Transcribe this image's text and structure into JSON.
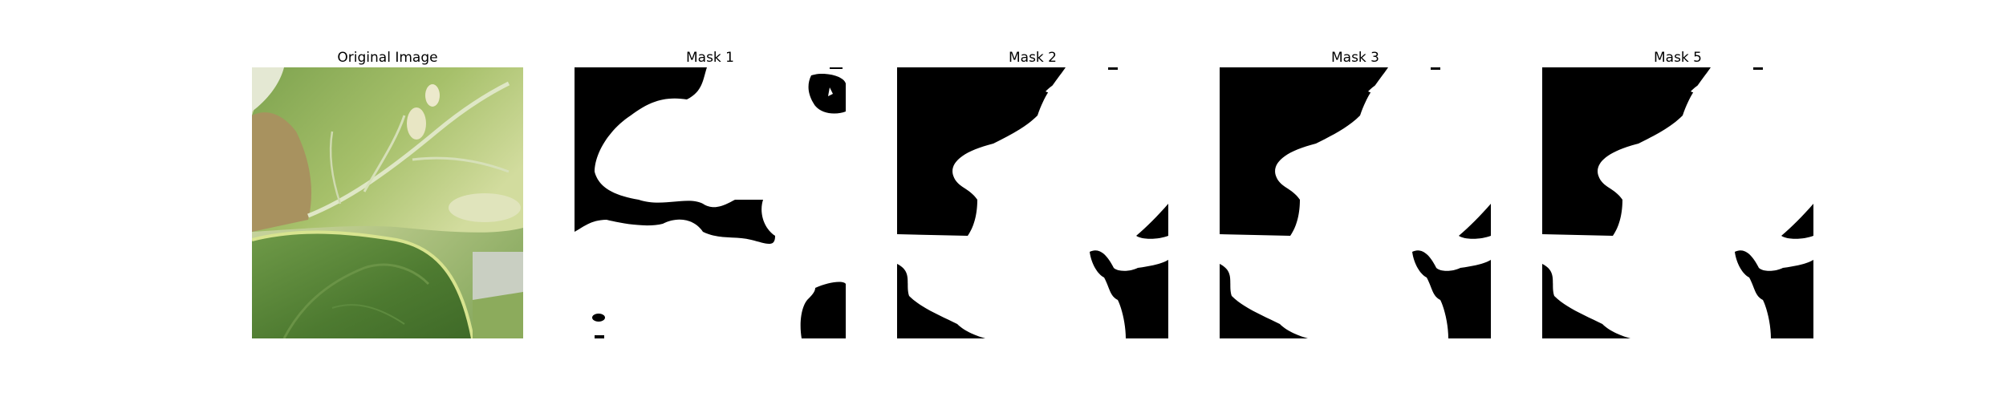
{
  "figure": {
    "panels": [
      {
        "title": "Original Image",
        "kind": "photo"
      },
      {
        "title": "Mask 1",
        "kind": "mask"
      },
      {
        "title": "Mask 2",
        "kind": "mask"
      },
      {
        "title": "Mask 3",
        "kind": "mask"
      },
      {
        "title": "Mask 5",
        "kind": "mask"
      }
    ]
  },
  "colors": {
    "mask_foreground": "#ffffff",
    "mask_background": "#000000",
    "leaf_light": "#c8d690",
    "leaf_mid": "#8fae5a",
    "leaf_dark": "#4f7d32",
    "leaf_brown": "#a8925f"
  }
}
